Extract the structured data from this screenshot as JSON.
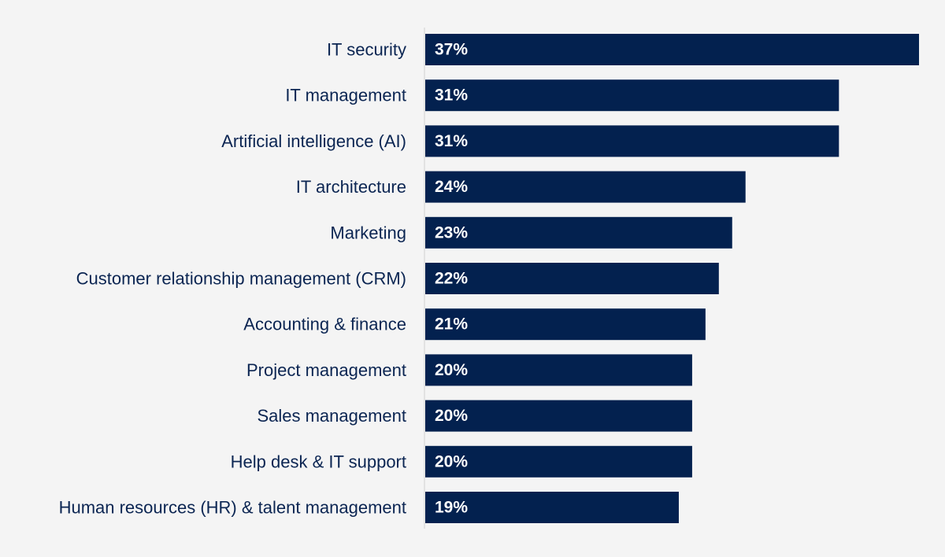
{
  "chart_data": {
    "type": "bar",
    "orientation": "horizontal",
    "title": "",
    "xlabel": "",
    "ylabel": "",
    "xlim": [
      0,
      37
    ],
    "grid": false,
    "legend": "none",
    "categories": [
      "IT security",
      "IT management",
      "Artificial intelligence (AI)",
      "IT architecture",
      "Marketing",
      "Customer relationship management (CRM)",
      "Accounting & finance",
      "Project management",
      "Sales management",
      "Help desk & IT support",
      "Human resources (HR) & talent management"
    ],
    "values": [
      37,
      31,
      31,
      24,
      23,
      22,
      21,
      20,
      20,
      20,
      19
    ],
    "value_labels": [
      "37%",
      "31%",
      "31%",
      "24%",
      "23%",
      "22%",
      "21%",
      "20%",
      "20%",
      "20%",
      "19%"
    ],
    "colors": {
      "bar": "#03214f",
      "bar_text": "#ffffff",
      "category_text": "#0b2552",
      "axis_line": "#cfcfcf",
      "background": "#f4f4f4"
    }
  }
}
